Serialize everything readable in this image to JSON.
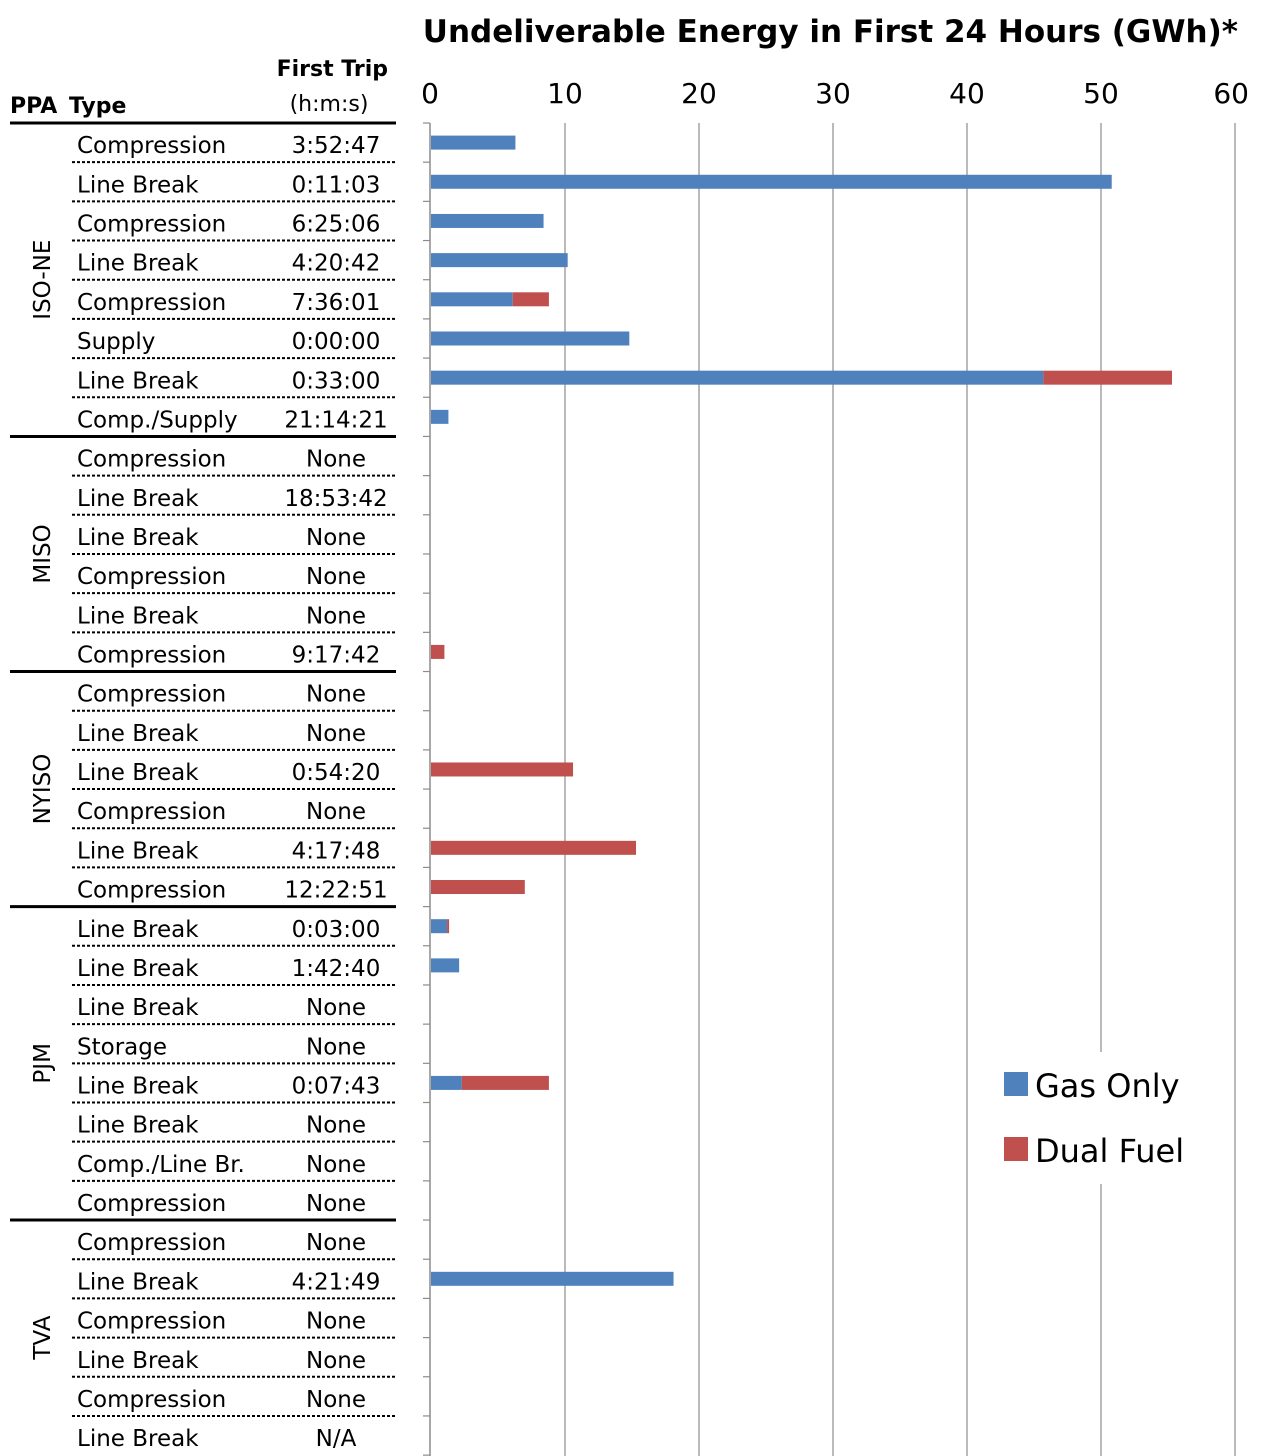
{
  "chart_data": {
    "type": "bar",
    "orientation": "horizontal",
    "stacked": true,
    "title": "Undeliverable Energy in First 24 Hours (GWh)*",
    "xlim": [
      0,
      60
    ],
    "x_ticks": [
      "0",
      "10",
      "20",
      "30",
      "40",
      "50",
      "60"
    ],
    "grid": "vertical gridlines",
    "legend_position": "bottom-right",
    "columns": {
      "ppa": "PPA",
      "type": "Type",
      "trip_line1": "First Trip",
      "trip_line2": "(h:m:s)"
    },
    "series": [
      {
        "name": "Gas Only",
        "color": "#4F81BD"
      },
      {
        "name": "Dual Fuel",
        "color": "#C0504D"
      }
    ],
    "groups": [
      {
        "ppa": "ISO-NE",
        "rows": [
          {
            "type": "Compression",
            "first_trip": "3:52:47",
            "gas_only": 6.3,
            "dual_fuel": 0
          },
          {
            "type": "Line Break",
            "first_trip": "0:11:03",
            "gas_only": 50.8,
            "dual_fuel": 0
          },
          {
            "type": "Compression",
            "first_trip": "6:25:06",
            "gas_only": 8.4,
            "dual_fuel": 0
          },
          {
            "type": "Line Break",
            "first_trip": "4:20:42",
            "gas_only": 10.2,
            "dual_fuel": 0
          },
          {
            "type": "Compression",
            "first_trip": "7:36:01",
            "gas_only": 6.1,
            "dual_fuel": 2.7
          },
          {
            "type": "Supply",
            "first_trip": "0:00:00",
            "gas_only": 14.8,
            "dual_fuel": 0
          },
          {
            "type": "Line Break",
            "first_trip": "0:33:00",
            "gas_only": 45.7,
            "dual_fuel": 9.6
          },
          {
            "type": "Comp./Supply",
            "first_trip": "21:14:21",
            "gas_only": 1.3,
            "dual_fuel": 0
          }
        ]
      },
      {
        "ppa": "MISO",
        "rows": [
          {
            "type": "Compression",
            "first_trip": "None",
            "gas_only": 0,
            "dual_fuel": 0
          },
          {
            "type": "Line Break",
            "first_trip": "18:53:42",
            "gas_only": 0,
            "dual_fuel": 0
          },
          {
            "type": "Line Break",
            "first_trip": "None",
            "gas_only": 0,
            "dual_fuel": 0
          },
          {
            "type": "Compression",
            "first_trip": "None",
            "gas_only": 0,
            "dual_fuel": 0
          },
          {
            "type": "Line Break",
            "first_trip": "None",
            "gas_only": 0,
            "dual_fuel": 0
          },
          {
            "type": "Compression",
            "first_trip": "9:17:42",
            "gas_only": 0,
            "dual_fuel": 1.0
          }
        ]
      },
      {
        "ppa": "NYISO",
        "rows": [
          {
            "type": "Compression",
            "first_trip": "None",
            "gas_only": 0,
            "dual_fuel": 0
          },
          {
            "type": "Line Break",
            "first_trip": "None",
            "gas_only": 0,
            "dual_fuel": 0
          },
          {
            "type": "Line Break",
            "first_trip": "0:54:20",
            "gas_only": 0,
            "dual_fuel": 10.6
          },
          {
            "type": "Compression",
            "first_trip": "None",
            "gas_only": 0,
            "dual_fuel": 0
          },
          {
            "type": "Line Break",
            "first_trip": "4:17:48",
            "gas_only": 0,
            "dual_fuel": 15.3
          },
          {
            "type": "Compression",
            "first_trip": "12:22:51",
            "gas_only": 0,
            "dual_fuel": 7.0
          }
        ]
      },
      {
        "ppa": "PJM",
        "rows": [
          {
            "type": "Line Break",
            "first_trip": "0:03:00",
            "gas_only": 1.2,
            "dual_fuel": 0.15
          },
          {
            "type": "Line Break",
            "first_trip": "1:42:40",
            "gas_only": 2.1,
            "dual_fuel": 0
          },
          {
            "type": "Line Break",
            "first_trip": "None",
            "gas_only": 0,
            "dual_fuel": 0
          },
          {
            "type": "Storage",
            "first_trip": "None",
            "gas_only": 0,
            "dual_fuel": 0
          },
          {
            "type": "Line Break",
            "first_trip": "0:07:43",
            "gas_only": 2.3,
            "dual_fuel": 6.5
          },
          {
            "type": "Line Break",
            "first_trip": "None",
            "gas_only": 0,
            "dual_fuel": 0
          },
          {
            "type": "Comp./Line Br.",
            "first_trip": "None",
            "gas_only": 0,
            "dual_fuel": 0
          },
          {
            "type": "Compression",
            "first_trip": "None",
            "gas_only": 0,
            "dual_fuel": 0
          }
        ]
      },
      {
        "ppa": "TVA",
        "rows": [
          {
            "type": "Compression",
            "first_trip": "None",
            "gas_only": 0,
            "dual_fuel": 0
          },
          {
            "type": "Line Break",
            "first_trip": "4:21:49",
            "gas_only": 18.1,
            "dual_fuel": 0
          },
          {
            "type": "Compression",
            "first_trip": "None",
            "gas_only": 0,
            "dual_fuel": 0
          },
          {
            "type": "Line Break",
            "first_trip": "None",
            "gas_only": 0,
            "dual_fuel": 0
          },
          {
            "type": "Compression",
            "first_trip": "None",
            "gas_only": 0,
            "dual_fuel": 0
          },
          {
            "type": "Line Break",
            "first_trip": "N/A",
            "gas_only": 0,
            "dual_fuel": 0
          }
        ]
      }
    ]
  }
}
